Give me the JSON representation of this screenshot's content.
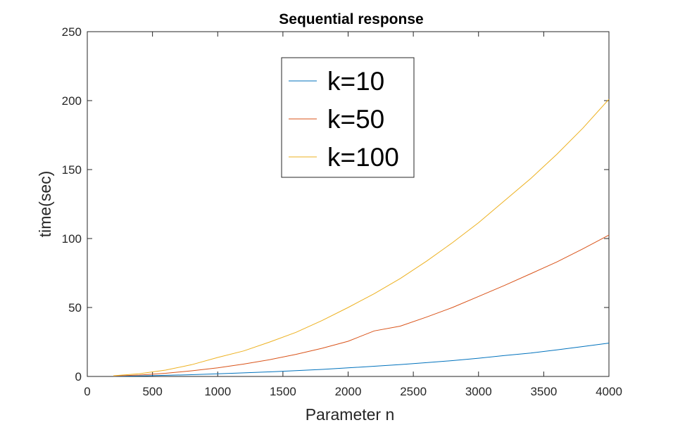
{
  "chart_data": {
    "type": "line",
    "title": "Sequential response",
    "xlabel": "Parameter n",
    "ylabel": "time(sec)",
    "xlim": [
      0,
      4000
    ],
    "ylim": [
      0,
      250
    ],
    "xticks": [
      0,
      500,
      1000,
      1500,
      2000,
      2500,
      3000,
      3500,
      4000
    ],
    "yticks": [
      0,
      50,
      100,
      150,
      200,
      250
    ],
    "grid": false,
    "legend_position": "top-center",
    "series": [
      {
        "name": "k=10",
        "color": "#0072BD",
        "x": [
          200,
          400,
          600,
          800,
          1000,
          1200,
          1400,
          1600,
          1800,
          2000,
          2200,
          2400,
          2600,
          2800,
          3000,
          3200,
          3400,
          3600,
          3800,
          4000
        ],
        "y": [
          0.1,
          0.4,
          0.8,
          1.3,
          1.9,
          2.6,
          3.3,
          4.2,
          5.1,
          6.2,
          7.4,
          8.6,
          10.0,
          11.5,
          13.2,
          15.2,
          17.0,
          19.3,
          21.7,
          24.2
        ]
      },
      {
        "name": "k=50",
        "color": "#D95319",
        "x": [
          200,
          400,
          600,
          800,
          1000,
          1200,
          1400,
          1600,
          1800,
          2000,
          2200,
          2400,
          2600,
          2800,
          3000,
          3200,
          3400,
          3600,
          3800,
          4000
        ],
        "y": [
          0.3,
          1.0,
          2.3,
          4.1,
          6.3,
          9.0,
          12.2,
          16.0,
          20.4,
          25.5,
          33.0,
          36.5,
          43.0,
          50.0,
          58.0,
          66.0,
          74.5,
          83.0,
          92.5,
          102.5
        ]
      },
      {
        "name": "k=100",
        "color": "#EDB120",
        "x": [
          200,
          400,
          600,
          800,
          1000,
          1200,
          1400,
          1600,
          1800,
          2000,
          2200,
          2400,
          2600,
          2800,
          3000,
          3200,
          3400,
          3600,
          3800,
          4000
        ],
        "y": [
          0.5,
          2.0,
          4.6,
          8.5,
          13.8,
          18.5,
          25.0,
          32.0,
          40.5,
          50.0,
          60.0,
          71.0,
          83.5,
          97.0,
          111.5,
          127.5,
          143.5,
          161.0,
          180.0,
          201.0
        ]
      }
    ]
  }
}
